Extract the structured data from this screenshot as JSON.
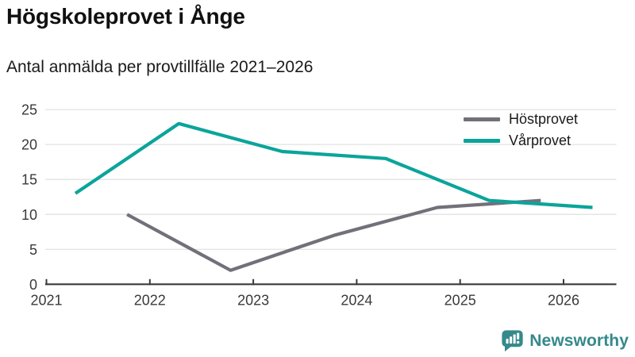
{
  "chart_data": {
    "type": "line",
    "title": "Högskoleprovet i Ånge",
    "subtitle": "Antal anmälda per provtillfälle 2021–2026",
    "x_axis": {
      "ticks": [
        2021,
        2022,
        2023,
        2024,
        2025,
        2026
      ],
      "range": [
        2021,
        2026.5
      ]
    },
    "y_axis": {
      "ticks": [
        0,
        5,
        10,
        15,
        20,
        25
      ],
      "range": [
        0,
        25
      ]
    },
    "grid": "horizontal",
    "legend_position": "top-right",
    "series": [
      {
        "name": "Höstprovet",
        "color": "#73707a",
        "x": [
          2021.78,
          2022.78,
          2023.78,
          2024.78,
          2025.78
        ],
        "values": [
          10,
          2,
          7,
          11,
          12
        ]
      },
      {
        "name": "Vårprovet",
        "color": "#0ba49b",
        "x": [
          2021.28,
          2022.28,
          2023.28,
          2024.28,
          2025.28,
          2026.28
        ],
        "values": [
          13,
          23,
          19,
          18,
          12,
          11
        ]
      }
    ],
    "colors": {
      "gridline": "#e4e4e4",
      "axis": "#3a3a3a",
      "tick_label": "#3a3a3a"
    }
  },
  "footer": {
    "brand": "Newsworthy",
    "logo_icon": "bar-chart-speech-bubble-icon",
    "accent_color": "#35898b"
  }
}
